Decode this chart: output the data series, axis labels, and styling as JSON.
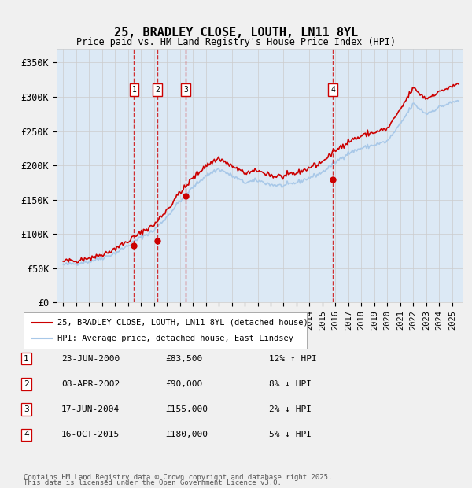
{
  "title": "25, BRADLEY CLOSE, LOUTH, LN11 8YL",
  "subtitle": "Price paid vs. HM Land Registry's House Price Index (HPI)",
  "ylabel": "",
  "bg_color": "#dce9f5",
  "plot_bg": "#dce9f5",
  "grid_color": "#ffffff",
  "hpi_color": "#a8c8e8",
  "price_color": "#cc0000",
  "ylim": [
    0,
    370000
  ],
  "yticks": [
    0,
    50000,
    100000,
    150000,
    200000,
    250000,
    300000,
    350000
  ],
  "ytick_labels": [
    "£0",
    "£50K",
    "£100K",
    "£150K",
    "£200K",
    "£250K",
    "£300K",
    "£350K"
  ],
  "transactions": [
    {
      "num": 1,
      "date": "23-JUN-2000",
      "price": 83500,
      "pct": "12%",
      "dir": "↑",
      "x_year": 2000.47
    },
    {
      "num": 2,
      "date": "08-APR-2002",
      "price": 90000,
      "pct": "8%",
      "dir": "↓",
      "x_year": 2002.27
    },
    {
      "num": 3,
      "date": "17-JUN-2004",
      "price": 155000,
      "pct": "2%",
      "dir": "↓",
      "x_year": 2004.46
    },
    {
      "num": 4,
      "date": "16-OCT-2015",
      "price": 180000,
      "pct": "5%",
      "dir": "↓",
      "x_year": 2015.79
    }
  ],
  "legend_line1": "25, BRADLEY CLOSE, LOUTH, LN11 8YL (detached house)",
  "legend_line2": "HPI: Average price, detached house, East Lindsey",
  "footer1": "Contains HM Land Registry data © Crown copyright and database right 2025.",
  "footer2": "This data is licensed under the Open Government Licence v3.0.",
  "xlim_start": 1994.5,
  "xlim_end": 2025.8
}
